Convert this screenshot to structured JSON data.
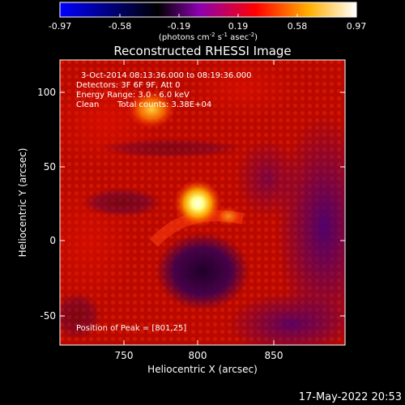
{
  "colorbar": {
    "ticks": [
      "-0.97",
      "-0.58",
      "-0.19",
      "0.19",
      "0.58",
      "0.97"
    ],
    "unit_prefix": "(photons cm",
    "unit_exp1": "-2",
    "unit_mid": " s",
    "unit_exp2": "-1",
    "unit_mid2": " asec",
    "unit_exp3": "-2",
    "unit_suffix": ")",
    "colors": [
      "#0000ff",
      "#000000",
      "#8b00b0",
      "#ff0000",
      "#ffb000",
      "#ffffff"
    ]
  },
  "annotations": {
    "time_range": "3-Oct-2014 08:13:36.000 to 08:19:36.000",
    "detectors": "Detectors: 3F 6F 9F, Att 0",
    "energy": "Energy Range: 3.0 - 6.0 keV",
    "clean_label": "Clean",
    "total_counts": "Total counts: 3.38E+04",
    "peak": "Position of Peak = [801,25]"
  },
  "footer_timestamp": "17-May-2022 20:53",
  "chart_data": {
    "type": "heatmap",
    "title": "Reconstructed RHESSI Image",
    "xlabel": "Heliocentric X (arcsec)",
    "ylabel": "Heliocentric Y (arcsec)",
    "xlim": [
      708,
      896
    ],
    "ylim": [
      -68,
      120
    ],
    "xticks": [
      750,
      800,
      850
    ],
    "yticks": [
      -50,
      0,
      50,
      100
    ],
    "colorbar_range": [
      -0.97,
      0.97
    ],
    "features": [
      {
        "name": "peak",
        "x": 801,
        "y": 25,
        "value": 0.97
      },
      {
        "name": "secondary source",
        "x": 770,
        "y": 93,
        "value": 0.75
      }
    ]
  }
}
